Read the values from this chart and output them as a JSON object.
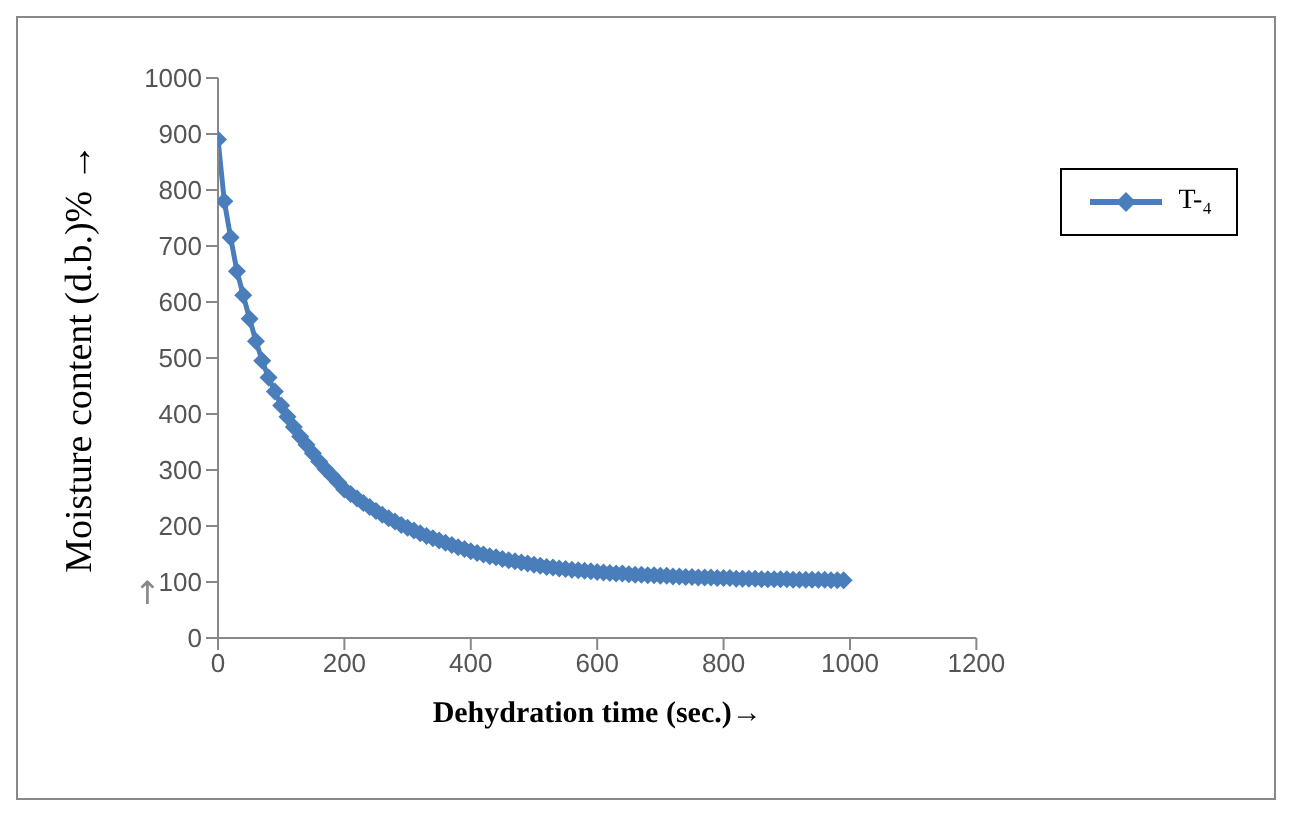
{
  "chart_data": {
    "type": "line",
    "xlabel": "Dehydration time (sec.)→",
    "ylabel": "Moisture content  (d.b.)% →",
    "annotations": [
      "↑"
    ],
    "x": [
      0,
      10,
      20,
      30,
      40,
      50,
      60,
      70,
      80,
      90,
      100,
      110,
      120,
      130,
      140,
      150,
      160,
      170,
      180,
      190,
      200,
      210,
      220,
      230,
      240,
      250,
      260,
      270,
      280,
      290,
      300,
      310,
      320,
      330,
      340,
      350,
      360,
      370,
      380,
      390,
      400,
      410,
      420,
      430,
      440,
      450,
      460,
      470,
      480,
      490,
      500,
      510,
      520,
      530,
      540,
      550,
      560,
      570,
      580,
      590,
      600,
      610,
      620,
      630,
      640,
      650,
      660,
      670,
      680,
      690,
      700,
      710,
      720,
      730,
      740,
      750,
      760,
      770,
      780,
      790,
      800,
      810,
      820,
      830,
      840,
      850,
      860,
      870,
      880,
      890,
      900,
      910,
      920,
      930,
      940,
      950,
      960,
      970,
      980,
      990
    ],
    "series": [
      {
        "name": "T-₄",
        "color": "#4a7ebb",
        "values": [
          890,
          780,
          715,
          655,
          612,
          570,
          530,
          495,
          465,
          440,
          415,
          395,
          377,
          360,
          345,
          330,
          315,
          302,
          290,
          278,
          265,
          257,
          249,
          241,
          234,
          227,
          220,
          214,
          208,
          202,
          197,
          192,
          187,
          182,
          178,
          174,
          170,
          166,
          162,
          159,
          155,
          152,
          149,
          146,
          144,
          141,
          139,
          137,
          135,
          133,
          131,
          129,
          127,
          126,
          124,
          123,
          122,
          121,
          120,
          119,
          118,
          117,
          116,
          115,
          115,
          114,
          113,
          113,
          112,
          112,
          111,
          111,
          110,
          110,
          109,
          109,
          108,
          108,
          108,
          107,
          107,
          107,
          106,
          106,
          106,
          106,
          105,
          105,
          105,
          105,
          105,
          104,
          104,
          104,
          104,
          104,
          104,
          103,
          103,
          103
        ]
      }
    ],
    "xlim": [
      0,
      1200
    ],
    "xticks": [
      0,
      200,
      400,
      600,
      800,
      1000,
      1200
    ],
    "ylim": [
      0,
      1000
    ],
    "yticks": [
      0,
      100,
      200,
      300,
      400,
      500,
      600,
      700,
      800,
      900,
      1000
    ],
    "grid": false,
    "legend": "top right",
    "marker": "diamond",
    "line_style": "solid"
  }
}
